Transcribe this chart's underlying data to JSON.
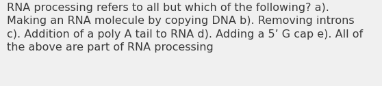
{
  "lines": [
    "RNA processing refers to all but which of the following? a).",
    "Making an RNA molecule by copying DNA b). Removing introns",
    "c). Addition of a poly A tail to RNA d). Adding a 5’ G cap e). All of",
    "the above are part of RNA processing"
  ],
  "background_color": "#f0f0f0",
  "text_color": "#3a3a3a",
  "font_size": 11.5,
  "fig_width": 5.58,
  "fig_height": 1.26,
  "dpi": 100
}
